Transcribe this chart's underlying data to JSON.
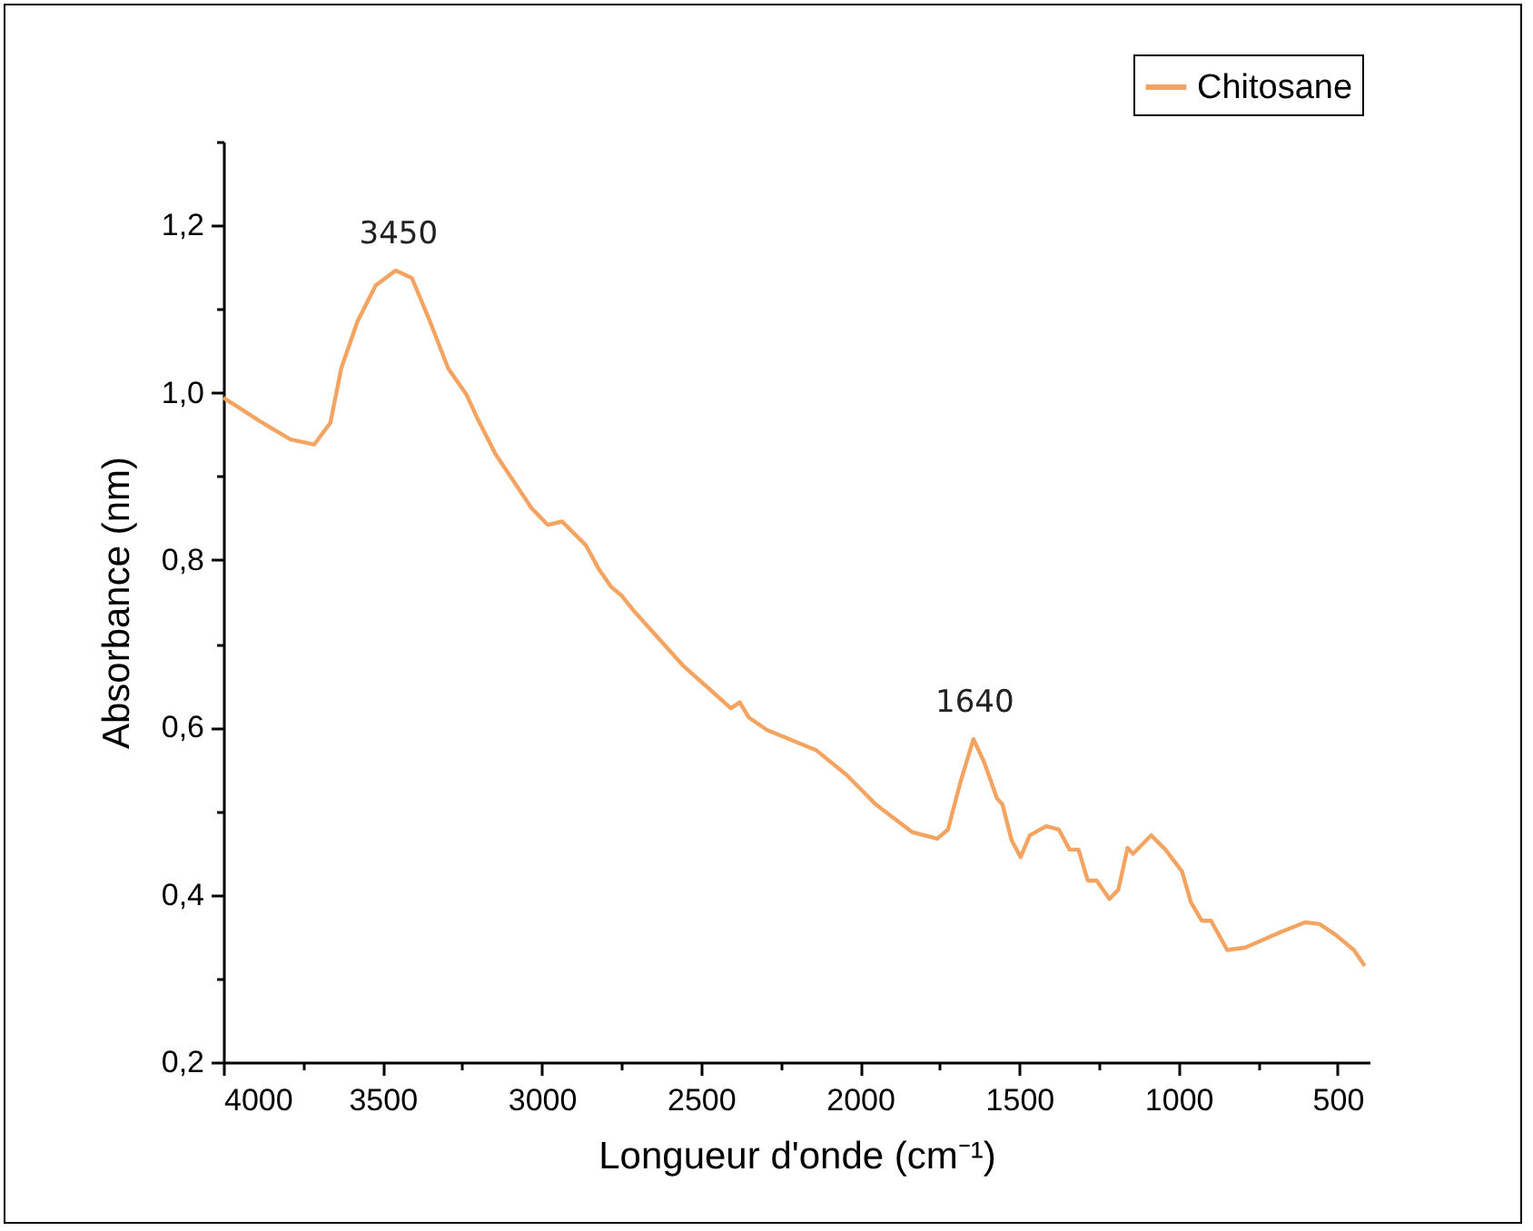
{
  "chart_data": {
    "type": "line",
    "xlabel": "Longueur d'onde (cm⁻¹)",
    "ylabel": "Absorbance (nm)",
    "xlim": [
      4000,
      400
    ],
    "ylim": [
      0.2,
      1.3
    ],
    "xticks": [
      4000,
      {
        "value": 3750,
        "label": null
      },
      3500,
      {
        "value": 3250,
        "label": null
      },
      3000,
      {
        "value": 2750,
        "label": null
      },
      2500,
      {
        "value": 2250,
        "label": null
      },
      2000,
      {
        "value": 1750,
        "label": null
      },
      1500,
      {
        "value": 1250,
        "label": null
      },
      1000,
      {
        "value": 750,
        "label": null
      },
      500
    ],
    "yticks": [
      {
        "value": 0.2,
        "label": "0,2"
      },
      {
        "value": 0.3,
        "label": null
      },
      {
        "value": 0.4,
        "label": "0,4"
      },
      {
        "value": 0.5,
        "label": null
      },
      {
        "value": 0.6,
        "label": "0,6"
      },
      {
        "value": 0.7,
        "label": null
      },
      {
        "value": 0.8,
        "label": "0,8"
      },
      {
        "value": 0.9,
        "label": null
      },
      {
        "value": 1.0,
        "label": "1,0"
      },
      {
        "value": 1.1,
        "label": null
      },
      {
        "value": 1.2,
        "label": "1,2"
      },
      {
        "value": 1.3,
        "label": null
      }
    ],
    "grid": false,
    "legend": "top right",
    "marker": "none",
    "line_style": "solid",
    "annotations": [
      {
        "text": "3450",
        "x": 3450,
        "y": 1.146
      },
      {
        "text": "1640",
        "x": 1640,
        "y": 0.586
      }
    ],
    "series": [
      {
        "name": "Chitosane",
        "color": "#f4a460",
        "x": [
          4000,
          3886,
          3789,
          3715,
          3664,
          3630,
          3579,
          3522,
          3459,
          3408,
          3351,
          3294,
          3237,
          3203,
          3146,
          3032,
          2981,
          2936,
          2862,
          2822,
          2782,
          2748,
          2708,
          2554,
          2406,
          2378,
          2350,
          2293,
          2139,
          2042,
          1951,
          1837,
          1758,
          1724,
          1684,
          1644,
          1610,
          1570,
          1553,
          1524,
          1496,
          1467,
          1416,
          1376,
          1342,
          1314,
          1285,
          1257,
          1217,
          1189,
          1160,
          1143,
          1086,
          1041,
          989,
          961,
          927,
          898,
          847,
          790,
          676,
          602,
          557,
          506,
          449,
          415
        ],
        "values": [
          0.994,
          0.966,
          0.944,
          0.938,
          0.964,
          1.029,
          1.085,
          1.128,
          1.146,
          1.137,
          1.085,
          1.029,
          0.998,
          0.97,
          0.927,
          0.862,
          0.842,
          0.846,
          0.818,
          0.79,
          0.768,
          0.757,
          0.738,
          0.673,
          0.623,
          0.63,
          0.612,
          0.597,
          0.573,
          0.543,
          0.508,
          0.475,
          0.467,
          0.478,
          0.536,
          0.586,
          0.558,
          0.515,
          0.508,
          0.465,
          0.445,
          0.471,
          0.482,
          0.478,
          0.454,
          0.454,
          0.417,
          0.417,
          0.395,
          0.406,
          0.456,
          0.449,
          0.471,
          0.454,
          0.428,
          0.391,
          0.369,
          0.369,
          0.334,
          0.337,
          0.356,
          0.367,
          0.365,
          0.352,
          0.334,
          0.315
        ]
      }
    ]
  }
}
